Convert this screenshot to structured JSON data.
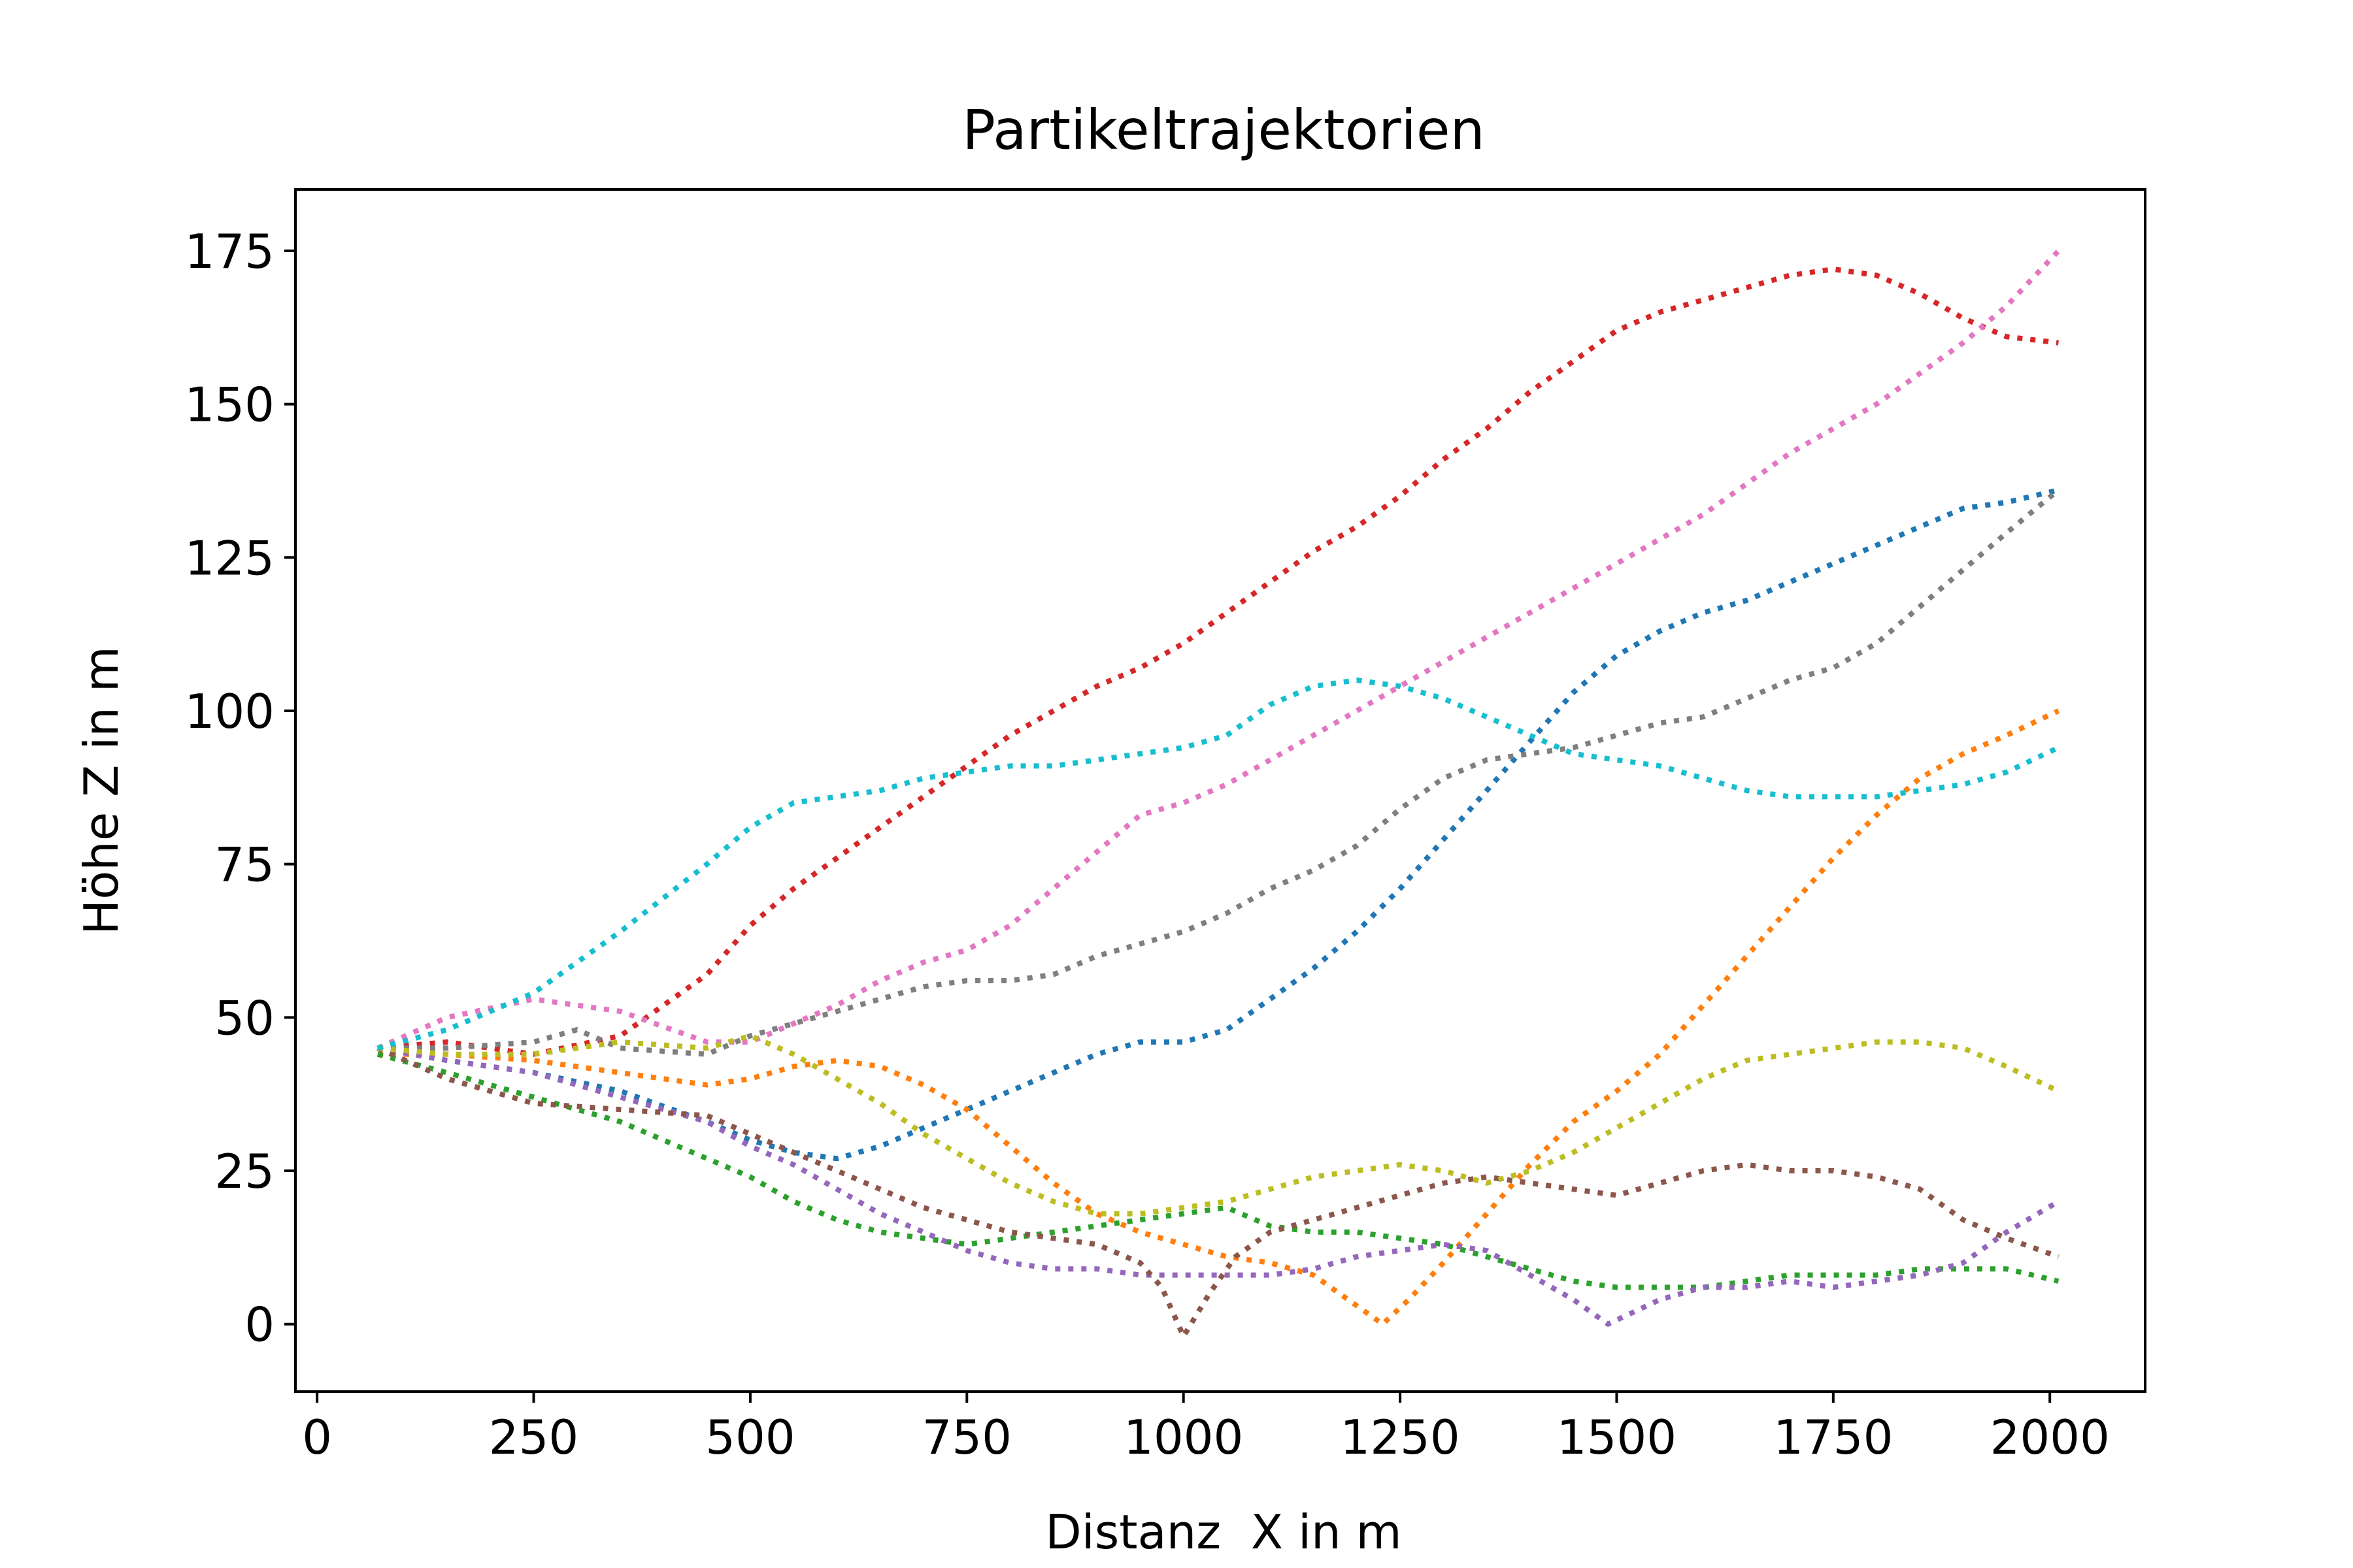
{
  "chart_data": {
    "type": "line",
    "title": "Partikeltrajektorien",
    "xlabel": "Distanz  X in m",
    "ylabel": "Höhe Z in m",
    "xlim": [
      -25,
      2110
    ],
    "ylim": [
      -11,
      185
    ],
    "xticks": [
      0,
      250,
      500,
      750,
      1000,
      1250,
      1500,
      1750,
      2000
    ],
    "yticks": [
      0,
      25,
      50,
      75,
      100,
      125,
      150,
      175
    ],
    "xtick_labels": [
      "0",
      "250",
      "500",
      "750",
      "1000",
      "1250",
      "1500",
      "1750",
      "2000"
    ],
    "ytick_labels": [
      "0",
      "25",
      "50",
      "75",
      "100",
      "125",
      "150",
      "175"
    ],
    "line_style": "dotted",
    "legend": "none",
    "grid": false,
    "series": [
      {
        "color": "#1f77b4",
        "x": [
          70,
          150,
          250,
          350,
          450,
          500,
          550,
          600,
          650,
          700,
          750,
          800,
          850,
          900,
          950,
          1000,
          1050,
          1100,
          1150,
          1200,
          1250,
          1300,
          1350,
          1400,
          1450,
          1500,
          1550,
          1600,
          1650,
          1700,
          1750,
          1800,
          1850,
          1900,
          1950,
          2010
        ],
        "y": [
          45,
          43,
          41,
          38,
          33,
          30,
          28,
          27,
          29,
          32,
          35,
          38,
          41,
          44,
          46,
          46,
          48,
          53,
          58,
          64,
          71,
          79,
          87,
          95,
          103,
          109,
          113,
          116,
          118,
          121,
          124,
          127,
          130,
          133,
          134,
          136
        ]
      },
      {
        "color": "#ff7f0e",
        "x": [
          70,
          150,
          250,
          350,
          450,
          500,
          550,
          600,
          650,
          700,
          750,
          800,
          850,
          900,
          950,
          1000,
          1050,
          1100,
          1150,
          1200,
          1230,
          1260,
          1300,
          1350,
          1400,
          1450,
          1500,
          1550,
          1600,
          1650,
          1700,
          1750,
          1800,
          1850,
          1900,
          1950,
          2010
        ],
        "y": [
          44,
          44,
          43,
          41,
          39,
          40,
          42,
          43,
          42,
          39,
          35,
          29,
          23,
          18,
          15,
          13,
          11,
          10,
          8,
          3,
          0,
          4,
          10,
          18,
          26,
          33,
          38,
          44,
          52,
          60,
          68,
          76,
          83,
          89,
          93,
          96,
          100
        ]
      },
      {
        "color": "#2ca02c",
        "x": [
          70,
          150,
          250,
          350,
          450,
          500,
          550,
          600,
          650,
          700,
          750,
          800,
          850,
          900,
          950,
          1000,
          1050,
          1100,
          1150,
          1200,
          1250,
          1300,
          1350,
          1400,
          1450,
          1500,
          1550,
          1600,
          1650,
          1700,
          1750,
          1800,
          1850,
          1900,
          1950,
          2010
        ],
        "y": [
          44,
          41,
          37,
          33,
          27,
          24,
          20,
          17,
          15,
          14,
          13,
          14,
          15,
          16,
          17,
          18,
          19,
          16,
          15,
          15,
          14,
          13,
          11,
          9,
          7,
          6,
          6,
          6,
          7,
          8,
          8,
          8,
          9,
          9,
          9,
          7
        ]
      },
      {
        "color": "#d62728",
        "x": [
          70,
          150,
          250,
          350,
          450,
          500,
          550,
          600,
          650,
          700,
          750,
          800,
          850,
          900,
          950,
          1000,
          1050,
          1100,
          1150,
          1200,
          1250,
          1300,
          1350,
          1400,
          1450,
          1500,
          1550,
          1600,
          1650,
          1700,
          1750,
          1800,
          1850,
          1900,
          1950,
          2010
        ],
        "y": [
          45,
          46,
          44,
          47,
          57,
          65,
          71,
          76,
          81,
          86,
          91,
          96,
          100,
          104,
          107,
          111,
          116,
          121,
          126,
          130,
          135,
          141,
          146,
          152,
          157,
          162,
          165,
          167,
          169,
          171,
          172,
          171,
          168,
          164,
          161,
          160
        ]
      },
      {
        "color": "#9467bd",
        "x": [
          70,
          150,
          250,
          350,
          450,
          500,
          550,
          600,
          650,
          700,
          750,
          800,
          850,
          900,
          950,
          1000,
          1050,
          1100,
          1150,
          1200,
          1250,
          1300,
          1350,
          1400,
          1450,
          1490,
          1550,
          1600,
          1650,
          1700,
          1750,
          1800,
          1850,
          1900,
          1950,
          2010
        ],
        "y": [
          45,
          43,
          41,
          37,
          33,
          29,
          26,
          22,
          18,
          15,
          12,
          10,
          9,
          9,
          8,
          8,
          8,
          8,
          9,
          11,
          12,
          13,
          12,
          8,
          4,
          0,
          4,
          6,
          6,
          7,
          6,
          7,
          8,
          10,
          15,
          20
        ]
      },
      {
        "color": "#8c564b",
        "x": [
          70,
          150,
          250,
          350,
          450,
          500,
          550,
          600,
          650,
          700,
          750,
          800,
          850,
          900,
          950,
          975,
          1000,
          1030,
          1060,
          1100,
          1150,
          1200,
          1250,
          1300,
          1350,
          1400,
          1450,
          1500,
          1550,
          1600,
          1650,
          1700,
          1750,
          1800,
          1850,
          1900,
          1950,
          2010
        ],
        "y": [
          45,
          40,
          36,
          35,
          34,
          31,
          28,
          25,
          22,
          19,
          17,
          15,
          14,
          13,
          10,
          6,
          -2,
          5,
          11,
          15,
          17,
          19,
          21,
          23,
          24,
          23,
          22,
          21,
          23,
          25,
          26,
          25,
          25,
          24,
          22,
          17,
          14,
          11
        ]
      },
      {
        "color": "#e377c2",
        "x": [
          70,
          150,
          250,
          350,
          450,
          500,
          550,
          600,
          650,
          700,
          750,
          800,
          850,
          900,
          950,
          1000,
          1050,
          1100,
          1150,
          1200,
          1250,
          1300,
          1350,
          1400,
          1450,
          1500,
          1550,
          1600,
          1650,
          1700,
          1750,
          1800,
          1850,
          1900,
          1950,
          2010
        ],
        "y": [
          45,
          50,
          53,
          51,
          46,
          46,
          49,
          52,
          56,
          59,
          61,
          65,
          71,
          77,
          83,
          85,
          88,
          92,
          96,
          100,
          104,
          108,
          112,
          116,
          120,
          124,
          128,
          132,
          137,
          142,
          146,
          150,
          155,
          160,
          166,
          175
        ]
      },
      {
        "color": "#7f7f7f",
        "x": [
          70,
          150,
          250,
          300,
          350,
          450,
          500,
          550,
          600,
          650,
          700,
          750,
          800,
          850,
          900,
          950,
          1000,
          1050,
          1100,
          1150,
          1200,
          1250,
          1300,
          1350,
          1400,
          1450,
          1500,
          1550,
          1600,
          1650,
          1700,
          1750,
          1800,
          1850,
          1900,
          1950,
          2010
        ],
        "y": [
          45,
          45,
          46,
          48,
          45,
          44,
          47,
          49,
          51,
          53,
          55,
          56,
          56,
          57,
          60,
          62,
          64,
          67,
          71,
          74,
          78,
          84,
          89,
          92,
          93,
          94,
          96,
          98,
          99,
          102,
          105,
          107,
          111,
          117,
          123,
          129,
          136
        ]
      },
      {
        "color": "#bcbd22",
        "x": [
          70,
          150,
          250,
          350,
          450,
          500,
          550,
          600,
          650,
          700,
          750,
          800,
          850,
          900,
          950,
          1000,
          1050,
          1100,
          1150,
          1200,
          1250,
          1300,
          1350,
          1400,
          1450,
          1500,
          1550,
          1600,
          1650,
          1700,
          1750,
          1800,
          1850,
          1900,
          1950,
          2010
        ],
        "y": [
          45,
          44,
          44,
          46,
          45,
          47,
          44,
          40,
          36,
          31,
          27,
          23,
          20,
          18,
          18,
          19,
          20,
          22,
          24,
          25,
          26,
          25,
          23,
          25,
          28,
          32,
          36,
          40,
          43,
          44,
          45,
          46,
          46,
          45,
          42,
          38
        ]
      },
      {
        "color": "#17becf",
        "x": [
          70,
          150,
          250,
          350,
          450,
          500,
          550,
          600,
          650,
          700,
          750,
          800,
          850,
          900,
          950,
          1000,
          1050,
          1100,
          1150,
          1200,
          1250,
          1300,
          1350,
          1400,
          1450,
          1500,
          1550,
          1600,
          1650,
          1700,
          1750,
          1800,
          1850,
          1900,
          1950,
          2010
        ],
        "y": [
          45,
          48,
          54,
          64,
          75,
          81,
          85,
          86,
          87,
          89,
          90,
          91,
          91,
          92,
          93,
          94,
          96,
          101,
          104,
          105,
          104,
          102,
          99,
          96,
          93,
          92,
          91,
          89,
          87,
          86,
          86,
          86,
          87,
          88,
          90,
          94
        ]
      }
    ]
  }
}
